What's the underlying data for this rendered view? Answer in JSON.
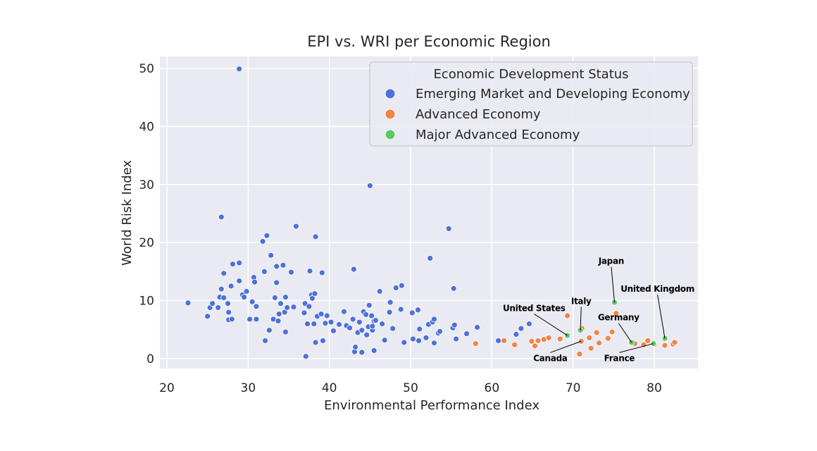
{
  "chart_data": {
    "type": "scatter",
    "title": "EPI vs. WRI per Economic Region",
    "xlabel": "Environmental Performance Index",
    "ylabel": "World Risk Index",
    "xlim": [
      19.5,
      85.5
    ],
    "ylim": [
      -2,
      52
    ],
    "xticks": [
      20,
      30,
      40,
      50,
      60,
      70,
      80
    ],
    "yticks": [
      0,
      10,
      20,
      30,
      40,
      50
    ],
    "grid": true,
    "legend": {
      "title": "Economic Development Status",
      "placement": "top-right"
    },
    "series": [
      {
        "name": "Emerging Market and Developing Economy",
        "color": "#4c72d8",
        "points": [
          [
            22.6,
            9.6
          ],
          [
            25.0,
            7.3
          ],
          [
            25.3,
            8.8
          ],
          [
            25.6,
            9.5
          ],
          [
            26.3,
            8.8
          ],
          [
            26.5,
            10.6
          ],
          [
            26.7,
            12.0
          ],
          [
            26.7,
            24.4
          ],
          [
            27.0,
            10.5
          ],
          [
            27.0,
            14.7
          ],
          [
            27.5,
            9.5
          ],
          [
            27.6,
            6.7
          ],
          [
            27.6,
            8.0
          ],
          [
            27.9,
            12.5
          ],
          [
            28.0,
            6.8
          ],
          [
            28.1,
            16.3
          ],
          [
            28.9,
            13.4
          ],
          [
            28.9,
            16.5
          ],
          [
            28.9,
            49.9
          ],
          [
            29.3,
            11.0
          ],
          [
            29.5,
            10.6
          ],
          [
            29.8,
            11.6
          ],
          [
            30.2,
            6.8
          ],
          [
            30.5,
            9.8
          ],
          [
            30.7,
            14.0
          ],
          [
            30.8,
            13.2
          ],
          [
            31.0,
            9.0
          ],
          [
            31.0,
            6.8
          ],
          [
            31.8,
            20.2
          ],
          [
            32.0,
            15.0
          ],
          [
            32.1,
            3.1
          ],
          [
            32.3,
            21.2
          ],
          [
            32.6,
            4.9
          ],
          [
            32.8,
            17.8
          ],
          [
            33.1,
            6.8
          ],
          [
            33.3,
            10.5
          ],
          [
            33.5,
            13.1
          ],
          [
            33.5,
            15.9
          ],
          [
            33.7,
            6.5
          ],
          [
            33.8,
            7.7
          ],
          [
            34.0,
            9.5
          ],
          [
            34.3,
            16.1
          ],
          [
            34.5,
            8.0
          ],
          [
            34.6,
            10.6
          ],
          [
            34.6,
            4.6
          ],
          [
            34.8,
            8.8
          ],
          [
            35.3,
            14.9
          ],
          [
            35.6,
            8.9
          ],
          [
            35.9,
            22.8
          ],
          [
            36.9,
            7.9
          ],
          [
            37.0,
            9.5
          ],
          [
            37.1,
            0.4
          ],
          [
            37.3,
            6.0
          ],
          [
            37.5,
            9.0
          ],
          [
            37.6,
            15.1
          ],
          [
            37.8,
            11.0
          ],
          [
            37.9,
            10.4
          ],
          [
            38.1,
            6.0
          ],
          [
            38.2,
            11.2
          ],
          [
            38.3,
            21.0
          ],
          [
            38.3,
            2.8
          ],
          [
            38.5,
            7.3
          ],
          [
            39.0,
            7.7
          ],
          [
            39.1,
            14.8
          ],
          [
            39.2,
            3.1
          ],
          [
            39.5,
            6.1
          ],
          [
            39.7,
            7.4
          ],
          [
            40.2,
            6.3
          ],
          [
            40.5,
            4.8
          ],
          [
            41.2,
            5.9
          ],
          [
            41.8,
            8.1
          ],
          [
            42.1,
            5.7
          ],
          [
            42.5,
            5.3
          ],
          [
            42.9,
            6.8
          ],
          [
            43.0,
            15.4
          ],
          [
            43.1,
            1.2
          ],
          [
            43.2,
            2.0
          ],
          [
            43.5,
            4.5
          ],
          [
            43.7,
            6.3
          ],
          [
            44.0,
            4.9
          ],
          [
            44.0,
            1.1
          ],
          [
            44.2,
            8.1
          ],
          [
            44.5,
            7.6
          ],
          [
            44.6,
            4.1
          ],
          [
            44.8,
            5.5
          ],
          [
            44.9,
            9.2
          ],
          [
            45.0,
            29.8
          ],
          [
            45.2,
            7.4
          ],
          [
            45.3,
            4.9
          ],
          [
            45.3,
            5.6
          ],
          [
            45.5,
            1.4
          ],
          [
            45.5,
            6.5
          ],
          [
            45.7,
            6.6
          ],
          [
            46.2,
            11.6
          ],
          [
            46.5,
            6.0
          ],
          [
            46.8,
            3.2
          ],
          [
            47.4,
            8.0
          ],
          [
            47.5,
            9.7
          ],
          [
            47.8,
            5.2
          ],
          [
            48.2,
            12.2
          ],
          [
            48.8,
            8.5
          ],
          [
            48.9,
            12.6
          ],
          [
            49.2,
            2.8
          ],
          [
            50.2,
            7.9
          ],
          [
            50.3,
            3.4
          ],
          [
            50.9,
            8.4
          ],
          [
            51.0,
            3.1
          ],
          [
            51.1,
            5.1
          ],
          [
            51.9,
            3.6
          ],
          [
            52.2,
            5.9
          ],
          [
            52.4,
            17.3
          ],
          [
            52.7,
            6.3
          ],
          [
            52.9,
            2.7
          ],
          [
            52.9,
            6.8
          ],
          [
            53.4,
            4.4
          ],
          [
            53.6,
            4.7
          ],
          [
            54.7,
            22.4
          ],
          [
            55.2,
            5.3
          ],
          [
            55.3,
            12.1
          ],
          [
            55.4,
            5.8
          ],
          [
            55.6,
            3.4
          ],
          [
            56.9,
            4.3
          ],
          [
            58.2,
            5.4
          ],
          [
            60.8,
            3.1
          ],
          [
            63.0,
            4.2
          ],
          [
            63.6,
            5.2
          ],
          [
            64.6,
            6.0
          ]
        ]
      },
      {
        "name": "Advanced Economy",
        "color": "#ee8547",
        "points": [
          [
            58.0,
            2.6
          ],
          [
            61.5,
            3.1
          ],
          [
            62.8,
            2.4
          ],
          [
            64.9,
            3.0
          ],
          [
            65.3,
            2.2
          ],
          [
            65.7,
            3.1
          ],
          [
            66.4,
            3.3
          ],
          [
            67.0,
            3.6
          ],
          [
            68.4,
            3.4
          ],
          [
            69.3,
            7.4
          ],
          [
            70.8,
            0.8
          ],
          [
            71.0,
            3.0
          ],
          [
            71.1,
            5.2
          ],
          [
            72.0,
            3.6
          ],
          [
            72.2,
            1.8
          ],
          [
            72.9,
            4.5
          ],
          [
            73.2,
            2.7
          ],
          [
            74.3,
            3.5
          ],
          [
            74.8,
            4.6
          ],
          [
            75.3,
            7.8
          ],
          [
            77.1,
            2.8
          ],
          [
            77.6,
            2.6
          ],
          [
            78.7,
            2.4
          ],
          [
            79.2,
            3.1
          ],
          [
            80.0,
            2.5
          ],
          [
            81.3,
            2.3
          ],
          [
            82.3,
            2.5
          ],
          [
            82.5,
            2.8
          ]
        ]
      },
      {
        "name": "Major Advanced Economy",
        "color": "#5dc863",
        "points": [
          [
            69.3,
            4.0
          ],
          [
            70.9,
            4.9
          ],
          [
            75.1,
            9.7
          ],
          [
            77.2,
            2.8
          ],
          [
            79.9,
            2.6
          ],
          [
            81.3,
            3.5
          ]
        ]
      }
    ],
    "annotations": [
      {
        "text": "United States",
        "x": 69.3,
        "y": 4.0,
        "tx": 65.2,
        "ty": 8.2
      },
      {
        "text": "Italy",
        "x": 70.9,
        "y": 4.9,
        "tx": 71.0,
        "ty": 9.4
      },
      {
        "text": "Japan",
        "x": 75.1,
        "y": 9.7,
        "tx": 74.7,
        "ty": 16.3
      },
      {
        "text": "United Kingdom",
        "x": 81.3,
        "y": 3.5,
        "tx": 80.4,
        "ty": 11.5
      },
      {
        "text": "Germany",
        "x": 77.2,
        "y": 2.8,
        "tx": 75.6,
        "ty": 6.6
      },
      {
        "text": "Canada",
        "x": 71.0,
        "y": 3.0,
        "tx": 67.2,
        "ty": -0.4
      },
      {
        "text": "France",
        "x": 79.9,
        "y": 2.6,
        "tx": 75.7,
        "ty": -0.4
      }
    ]
  }
}
